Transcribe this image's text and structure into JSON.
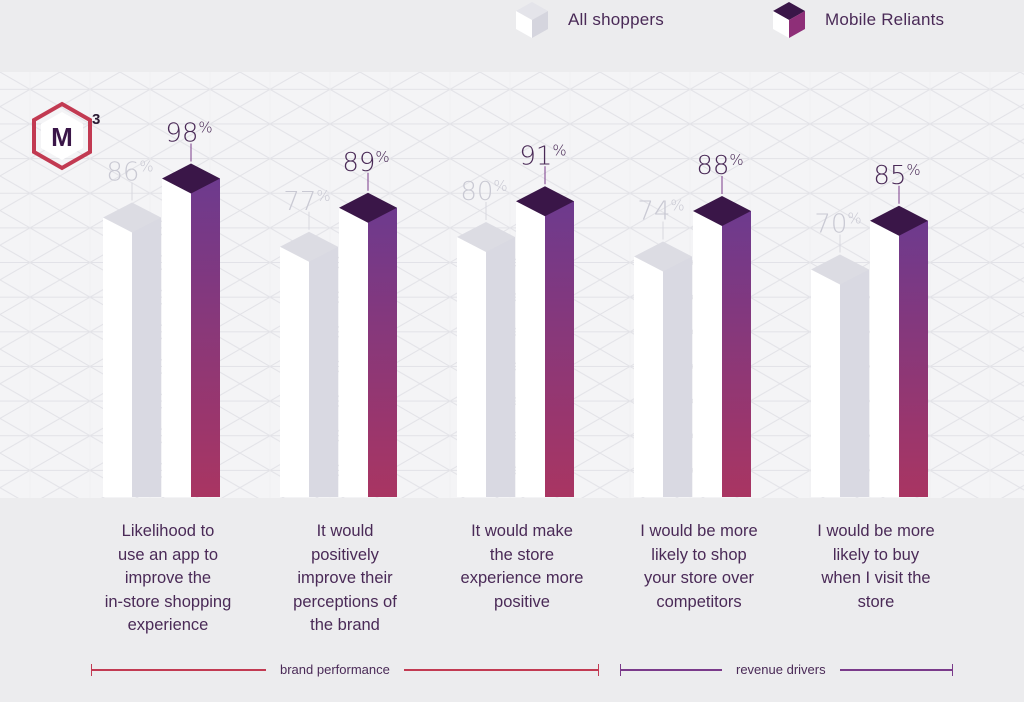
{
  "legend": {
    "all_label": "All shoppers",
    "mobile_label": "Mobile Reliants"
  },
  "logo": {
    "superscript": "3"
  },
  "groups": [
    {
      "label": "brand performance",
      "color": "#c23a52"
    },
    {
      "label": "revenue drivers",
      "color": "#7a3a8a"
    }
  ],
  "colors": {
    "all_shoppers": "#d9d9e2",
    "mobile_top": "#6d3a8e",
    "mobile_bottom": "#a93562",
    "mobile_cap": "#3a1648"
  },
  "chart_data": {
    "type": "bar",
    "categories": [
      "Likelihood to use an app to improve the in-store shopping experience",
      "It would positively improve their perceptions of the brand",
      "It would make the store experience more positive",
      "I would be more likely to shop your store over competitors",
      "I would be more likely to buy when I visit the store"
    ],
    "series": [
      {
        "name": "All shoppers",
        "values": [
          86,
          77,
          80,
          74,
          70
        ]
      },
      {
        "name": "Mobile Reliants",
        "values": [
          98,
          89,
          91,
          88,
          85
        ]
      }
    ],
    "value_labels": {
      "all": [
        "86%",
        "77%",
        "80%",
        "74%",
        "70%"
      ],
      "mobile": [
        "98%",
        "89%",
        "91%",
        "88%",
        "85%"
      ]
    },
    "category_lines": [
      [
        "Likelihood to",
        "use an app to",
        "improve the",
        "in-store shopping",
        "experience"
      ],
      [
        "It would",
        "positively",
        "improve their",
        "perceptions of",
        "the brand"
      ],
      [
        "It would make",
        "the store",
        "experience more",
        "positive"
      ],
      [
        "I would be more",
        "likely to shop",
        "your store over",
        "competitors"
      ],
      [
        "I would be more",
        "likely to buy",
        "when I visit the",
        "store"
      ]
    ],
    "ylim": [
      0,
      100
    ]
  }
}
